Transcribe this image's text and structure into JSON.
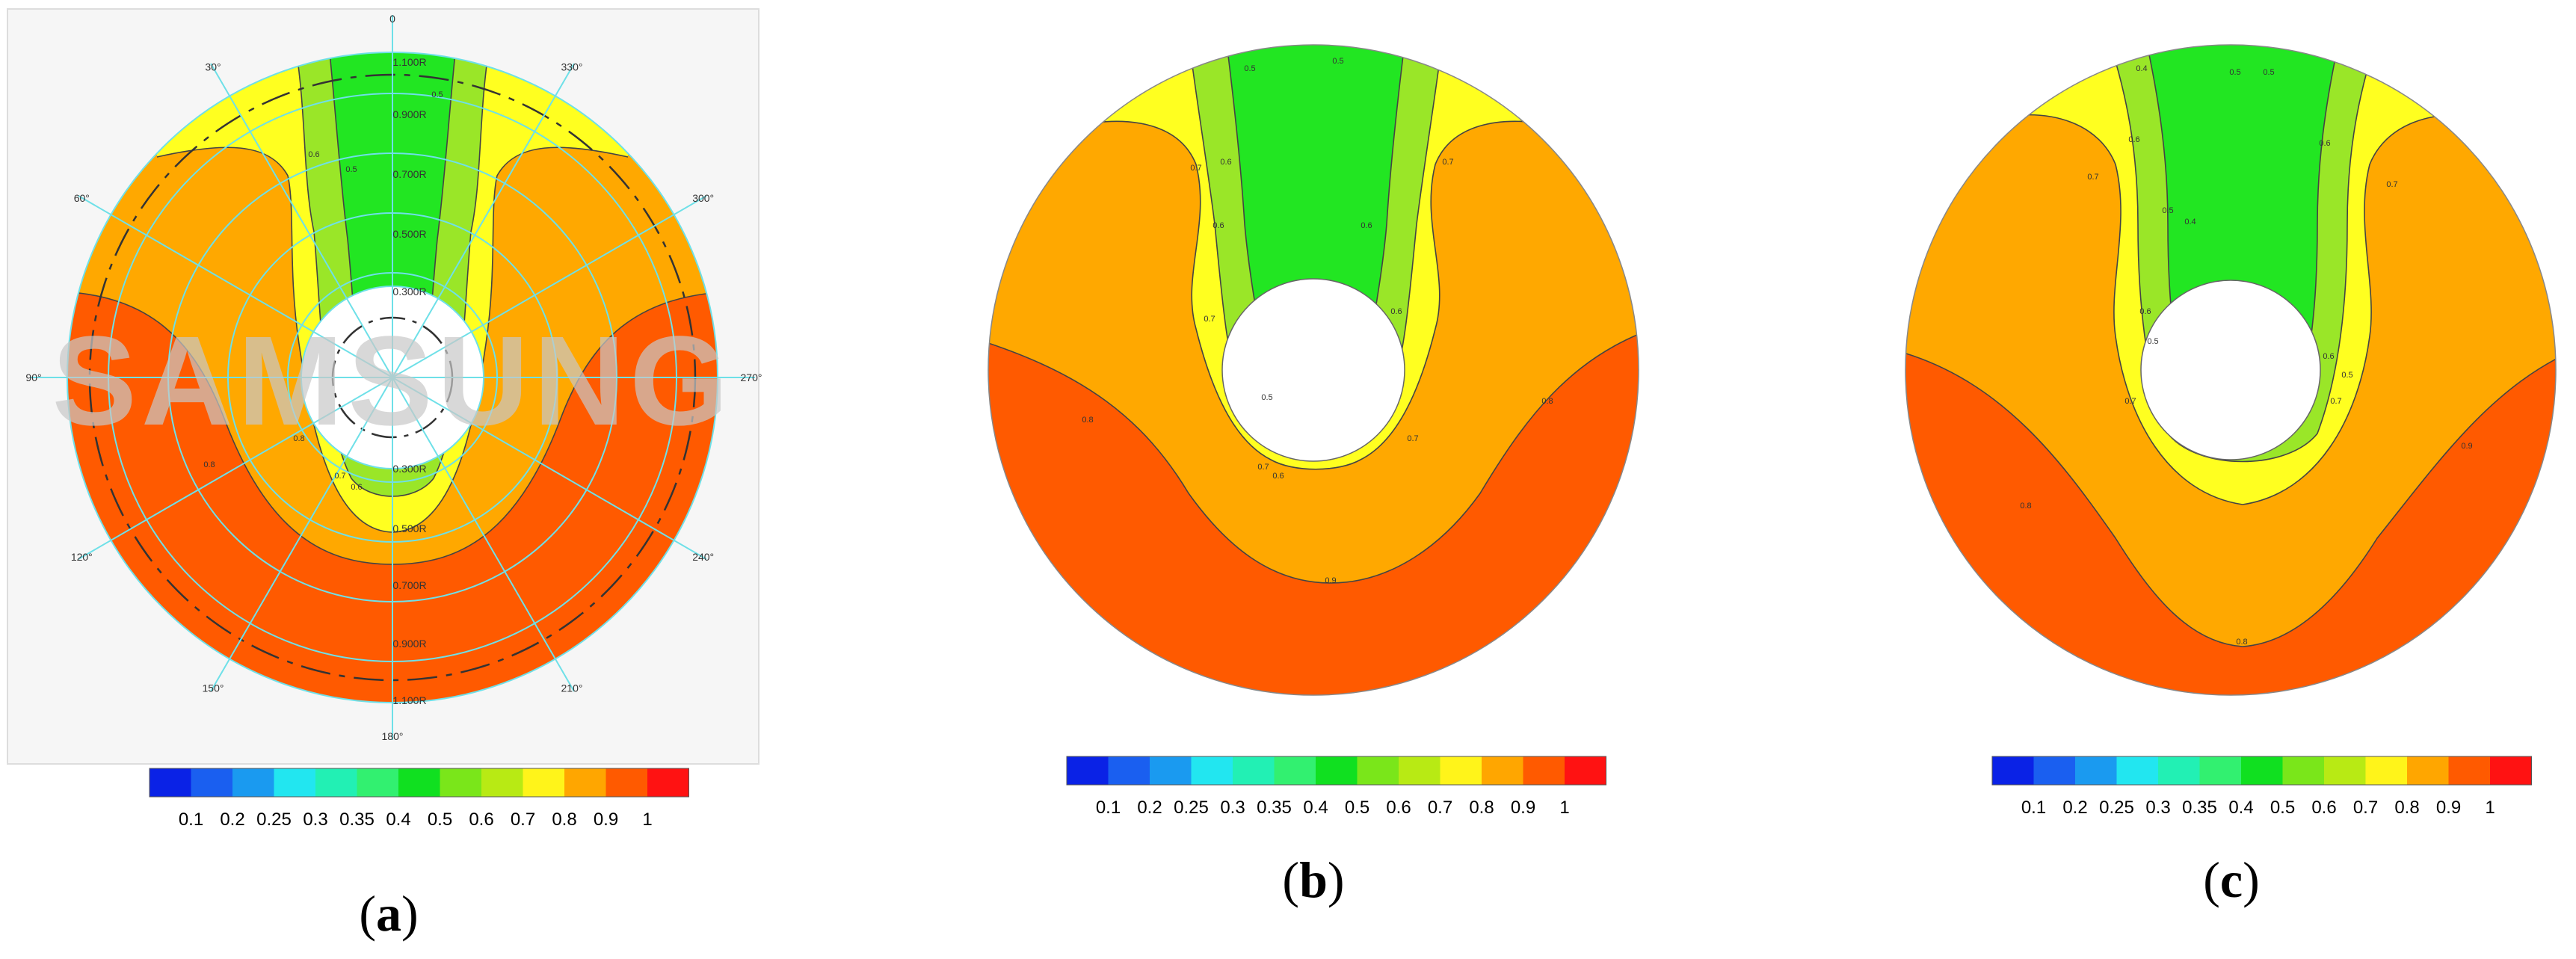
{
  "colors": {
    "scale": [
      "#0a22e6",
      "#1a5ff0",
      "#1a9af0",
      "#22e6f0",
      "#22f0b4",
      "#32f070",
      "#10e020",
      "#7ae61a",
      "#b8ea14",
      "#fff41a",
      "#ffa600",
      "#ff5a00",
      "#ff1212"
    ],
    "levels": {
      "green": "#22e622",
      "lightgreen": "#9ae628",
      "yellow": "#ffff20",
      "orange": "#ffa800",
      "red": "#ff5a00"
    },
    "grid": "#6ee0e8"
  },
  "chart_data": [
    {
      "type": "heatmap",
      "panel_label": "a",
      "watermark": "SAMSUNG",
      "angle_labels": [
        "0",
        "30°",
        "60°",
        "90°",
        "120°",
        "150°",
        "180°",
        "210°",
        "240°",
        "270°",
        "300°",
        "330°"
      ],
      "radius_labels": [
        "1.100R",
        "0.900R",
        "0.700R",
        "0.500R",
        "0.300R"
      ],
      "radius_labels_bottom": [
        "0.300R",
        "0.500R",
        "0.700R",
        "0.900R",
        "1.100R"
      ],
      "contour_labels": [
        "0.5",
        "0.6",
        "0.7",
        "0.8",
        "0.9"
      ],
      "colorbar_ticks": [
        "0.1",
        "0.2",
        "0.25",
        "0.3",
        "0.35",
        "0.4",
        "0.5",
        "0.6",
        "0.7",
        "0.8",
        "0.9",
        "1"
      ]
    },
    {
      "type": "heatmap",
      "panel_label": "b",
      "contour_labels": [
        "0.5",
        "0.6",
        "0.7",
        "0.8",
        "0.9"
      ],
      "colorbar_ticks": [
        "0.1",
        "0.2",
        "0.25",
        "0.3",
        "0.35",
        "0.4",
        "0.5",
        "0.6",
        "0.7",
        "0.8",
        "0.9",
        "1"
      ]
    },
    {
      "type": "heatmap",
      "panel_label": "c",
      "contour_labels": [
        "0.4",
        "0.5",
        "0.6",
        "0.7",
        "0.8",
        "0.9"
      ],
      "colorbar_ticks": [
        "0.1",
        "0.2",
        "0.25",
        "0.3",
        "0.35",
        "0.4",
        "0.5",
        "0.6",
        "0.7",
        "0.8",
        "0.9",
        "1"
      ]
    }
  ]
}
